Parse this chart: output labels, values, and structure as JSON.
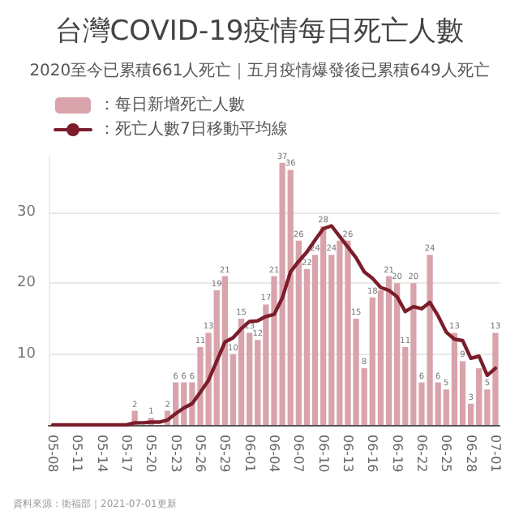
{
  "chart_data": {
    "type": "bar",
    "title": "台灣COVID-19疫情每日死亡人數",
    "subtitle": "2020至今已累積661人死亡｜五月疫情爆發後已累積649人死亡",
    "categories": [
      "05-08",
      null,
      null,
      "05-11",
      null,
      null,
      "05-14",
      null,
      null,
      "05-17",
      null,
      null,
      "05-20",
      null,
      null,
      "05-23",
      null,
      null,
      "05-26",
      null,
      null,
      "05-29",
      null,
      null,
      "06-01",
      null,
      null,
      "06-04",
      null,
      null,
      "06-07",
      null,
      null,
      "06-10",
      null,
      null,
      "06-13",
      null,
      null,
      "06-16",
      null,
      null,
      "06-19",
      null,
      null,
      "06-22",
      null,
      null,
      "06-25",
      null,
      null,
      "06-28",
      null,
      null,
      "07-01"
    ],
    "series": [
      {
        "name": "：每日新增死亡人數",
        "color": "#d9a3ab",
        "values": [
          0,
          0,
          0,
          0,
          0,
          0,
          0,
          0,
          0,
          0,
          2,
          0,
          1,
          0,
          2,
          6,
          6,
          6,
          11,
          13,
          19,
          21,
          10,
          15,
          13,
          12,
          17,
          21,
          37,
          36,
          26,
          22,
          24,
          28,
          24,
          26,
          26,
          15,
          8,
          18,
          19,
          21,
          20,
          11,
          20,
          6,
          24,
          6,
          5,
          13,
          9,
          3,
          8,
          5,
          13
        ],
        "value_labels": [
          null,
          null,
          null,
          null,
          null,
          null,
          null,
          null,
          null,
          null,
          "2",
          null,
          "1",
          null,
          "2",
          "6",
          "6",
          "6",
          "11",
          "13",
          "19",
          "21",
          "10",
          "15",
          "13",
          "12",
          "17",
          "21",
          "37",
          "36",
          "26",
          "22",
          "24",
          "28",
          "24",
          null,
          "26",
          "15",
          "8",
          "18",
          null,
          "21",
          "20",
          "11",
          "20",
          "6",
          "24",
          "6",
          "5",
          "13",
          "9",
          "3",
          null,
          "5",
          "13"
        ]
      },
      {
        "type": "line",
        "name": "：死亡人數7日移動平均線",
        "color": "#7b1d2b",
        "values": [
          0,
          0,
          0,
          0,
          0,
          0,
          0,
          0,
          0,
          0,
          0.3,
          0.3,
          0.4,
          0.4,
          0.7,
          1.6,
          2.4,
          3.0,
          4.6,
          6.3,
          9.0,
          11.7,
          12.3,
          13.6,
          14.6,
          14.7,
          15.3,
          15.6,
          17.9,
          21.6,
          23.1,
          24.4,
          26.1,
          27.7,
          28.1,
          26.6,
          25.1,
          23.6,
          21.6,
          20.7,
          19.4,
          19.0,
          18.1,
          16.0,
          16.7,
          16.4,
          17.3,
          15.4,
          13.1,
          12.1,
          11.9,
          9.4,
          9.7,
          7.0,
          8.0
        ]
      }
    ],
    "ylim": [
      0,
      38
    ],
    "yticks": [
      10,
      20,
      30
    ],
    "grid": "y",
    "legend": "top left",
    "marker": "none",
    "line_style": "solid",
    "annotations": [
      "資料來源：衛福部｜2021-07-01更新"
    ]
  }
}
